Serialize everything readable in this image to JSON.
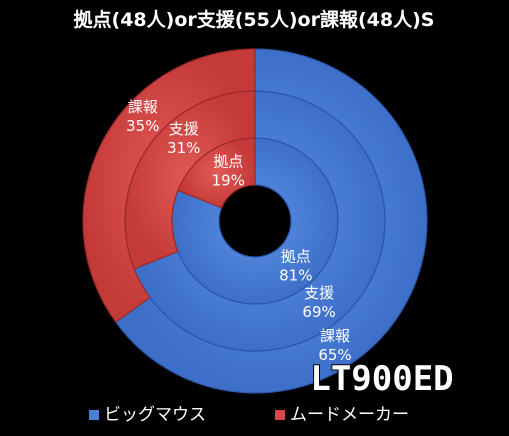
{
  "chart_data": {
    "type": "pie",
    "variant": "concentric-donut",
    "title": "拠点(48人)or支援(55人)or課報(48人)S",
    "rings_inner_to_outer": [
      {
        "name": "拠点",
        "values": [
          81,
          19
        ]
      },
      {
        "name": "支援",
        "values": [
          69,
          31
        ]
      },
      {
        "name": "課報",
        "values": [
          65,
          35
        ]
      }
    ],
    "categories": [
      "ビッグマウス",
      "ムードメーカー"
    ],
    "legend": {
      "position": "bottom"
    }
  },
  "colors": {
    "blue": "#4a7fd6",
    "blue_edge": "#2a57a8",
    "red": "#d84a48",
    "red_edge": "#9c2a28",
    "background": "#000000",
    "label": "#ffffff"
  },
  "watermark": "LT900ED"
}
